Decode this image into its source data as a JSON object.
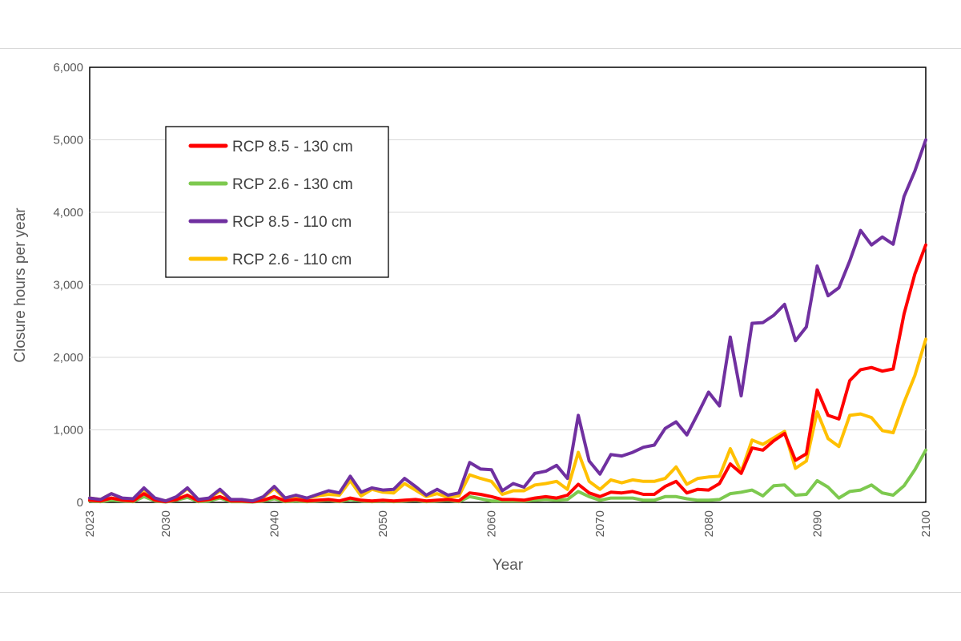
{
  "chart_data": {
    "type": "line",
    "xlabel": "Year",
    "ylabel": "Closure hours per year",
    "xlim": [
      2023,
      2100
    ],
    "ylim": [
      0,
      6000
    ],
    "x_ticks": [
      2023,
      2030,
      2040,
      2050,
      2060,
      2070,
      2080,
      2090,
      2100
    ],
    "y_ticks": [
      0,
      1000,
      2000,
      3000,
      4000,
      5000,
      6000
    ],
    "y_tick_labels": [
      "0",
      "1,000",
      "2,000",
      "3,000",
      "4,000",
      "5,000",
      "6,000"
    ],
    "grid": "horizontal",
    "legend_position": "upper-left",
    "x": [
      2023,
      2024,
      2025,
      2026,
      2027,
      2028,
      2029,
      2030,
      2031,
      2032,
      2033,
      2034,
      2035,
      2036,
      2037,
      2038,
      2039,
      2040,
      2041,
      2042,
      2043,
      2044,
      2045,
      2046,
      2047,
      2048,
      2049,
      2050,
      2051,
      2052,
      2053,
      2054,
      2055,
      2056,
      2057,
      2058,
      2059,
      2060,
      2061,
      2062,
      2063,
      2064,
      2065,
      2066,
      2067,
      2068,
      2069,
      2070,
      2071,
      2072,
      2073,
      2074,
      2075,
      2076,
      2077,
      2078,
      2079,
      2080,
      2081,
      2082,
      2083,
      2084,
      2085,
      2086,
      2087,
      2088,
      2089,
      2090,
      2091,
      2092,
      2093,
      2094,
      2095,
      2096,
      2097,
      2098,
      2099,
      2100
    ],
    "series": [
      {
        "name": "RCP 8.5 - 130 cm",
        "color": "#ff0000",
        "values": [
          30,
          20,
          60,
          30,
          20,
          120,
          30,
          10,
          40,
          100,
          20,
          40,
          80,
          20,
          20,
          10,
          30,
          80,
          20,
          40,
          20,
          30,
          40,
          20,
          60,
          30,
          20,
          30,
          20,
          30,
          40,
          20,
          30,
          40,
          20,
          130,
          110,
          80,
          40,
          40,
          30,
          60,
          80,
          60,
          100,
          250,
          130,
          80,
          140,
          130,
          150,
          110,
          110,
          220,
          290,
          130,
          180,
          170,
          260,
          530,
          400,
          750,
          720,
          850,
          950,
          580,
          670,
          1550,
          1200,
          1150,
          1680,
          1830,
          1860,
          1810,
          1840,
          2600,
          3150,
          3550
        ]
      },
      {
        "name": "RCP 2.6 - 130 cm",
        "color": "#7dc94f",
        "values": [
          20,
          10,
          30,
          20,
          10,
          80,
          20,
          5,
          30,
          70,
          10,
          20,
          60,
          10,
          10,
          5,
          20,
          50,
          10,
          20,
          10,
          20,
          30,
          10,
          40,
          20,
          10,
          20,
          10,
          20,
          30,
          10,
          20,
          30,
          10,
          80,
          50,
          20,
          20,
          20,
          20,
          30,
          40,
          30,
          40,
          150,
          80,
          30,
          60,
          60,
          60,
          30,
          30,
          80,
          80,
          50,
          30,
          30,
          40,
          120,
          140,
          170,
          90,
          230,
          240,
          100,
          110,
          300,
          210,
          60,
          150,
          170,
          240,
          130,
          100,
          230,
          450,
          720
        ]
      },
      {
        "name": "RCP 8.5 - 110 cm",
        "color": "#7030a0",
        "values": [
          60,
          40,
          120,
          60,
          50,
          200,
          60,
          20,
          80,
          200,
          40,
          60,
          180,
          40,
          40,
          20,
          80,
          220,
          60,
          100,
          60,
          110,
          160,
          130,
          360,
          140,
          200,
          170,
          180,
          330,
          220,
          100,
          180,
          100,
          130,
          550,
          460,
          450,
          160,
          260,
          210,
          400,
          430,
          510,
          330,
          1200,
          570,
          390,
          660,
          640,
          690,
          760,
          790,
          1020,
          1110,
          930,
          1220,
          1520,
          1330,
          2280,
          1470,
          2470,
          2480,
          2580,
          2730,
          2230,
          2420,
          3260,
          2850,
          2960,
          3330,
          3750,
          3550,
          3660,
          3560,
          4220,
          4570,
          5000
        ]
      },
      {
        "name": "RCP 2.6 - 110 cm",
        "color": "#ffc000",
        "values": [
          60,
          40,
          120,
          50,
          40,
          180,
          50,
          20,
          70,
          190,
          40,
          50,
          160,
          40,
          30,
          20,
          70,
          190,
          50,
          70,
          60,
          90,
          110,
          100,
          300,
          90,
          180,
          140,
          130,
          260,
          170,
          80,
          120,
          70,
          90,
          380,
          330,
          290,
          110,
          160,
          160,
          240,
          260,
          290,
          180,
          690,
          290,
          180,
          310,
          270,
          310,
          290,
          290,
          330,
          490,
          250,
          330,
          350,
          360,
          740,
          420,
          860,
          800,
          890,
          980,
          470,
          570,
          1250,
          880,
          770,
          1200,
          1220,
          1170,
          990,
          960,
          1380,
          1750,
          2250
        ]
      }
    ]
  }
}
